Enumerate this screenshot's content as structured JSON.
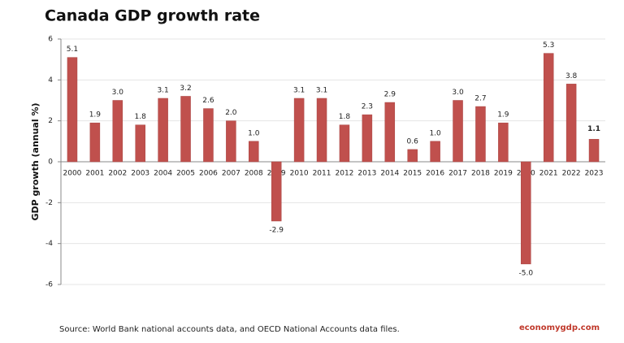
{
  "chart_data": {
    "type": "bar",
    "title": "Canada GDP growth rate",
    "y_label": "GDP growth (annual %)",
    "categories": [
      "2000",
      "2001",
      "2002",
      "2003",
      "2004",
      "2005",
      "2006",
      "2007",
      "2008",
      "2009",
      "2010",
      "2011",
      "2012",
      "2013",
      "2014",
      "2015",
      "2016",
      "2017",
      "2018",
      "2019",
      "2020",
      "2021",
      "2022",
      "2023"
    ],
    "values": [
      5.1,
      1.9,
      3.0,
      1.8,
      3.1,
      3.2,
      2.6,
      2.0,
      1.0,
      -2.9,
      3.1,
      3.1,
      1.8,
      2.3,
      2.9,
      0.6,
      1.0,
      3.0,
      2.7,
      1.9,
      -5.0,
      5.3,
      3.8,
      1.1
    ],
    "value_labels": [
      "5.1",
      "1.9",
      "3.0",
      "1.8",
      "3.1",
      "3.2",
      "2.6",
      "2.0",
      "1.0",
      "-2.9",
      "3.1",
      "3.1",
      "1.8",
      "2.3",
      "2.9",
      "0.6",
      "1.0",
      "3.0",
      "2.7",
      "1.9",
      "-5.0",
      "5.3",
      "3.8",
      "1.1"
    ],
    "color": "#c0504d",
    "ylim": [
      -6,
      6
    ],
    "yticks": [
      6,
      4,
      2,
      0,
      -2,
      -4,
      -6
    ],
    "grid": true,
    "source": "Source:  World Bank national accounts data, and OECD National Accounts data files.",
    "watermark": "economygdp.com"
  }
}
